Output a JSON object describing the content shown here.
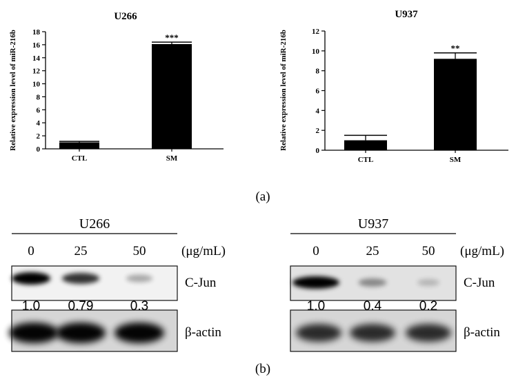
{
  "chart_data": [
    {
      "type": "bar",
      "title": "U266",
      "ylabel": "Relative expression level of miR-216b",
      "xlabel": "",
      "categories": [
        "CTL",
        "SM"
      ],
      "values": [
        1.0,
        16.1
      ],
      "errors": [
        0.15,
        0.3
      ],
      "significance": [
        "",
        "***"
      ],
      "ylim": [
        0,
        18
      ],
      "yticks": [
        0,
        2,
        4,
        6,
        8,
        10,
        12,
        14,
        16,
        18
      ],
      "bar_color": "#000000"
    },
    {
      "type": "bar",
      "title": "U937",
      "ylabel": "Relative expression level of miR-216b",
      "xlabel": "",
      "categories": [
        "CTL",
        "SM"
      ],
      "values": [
        1.0,
        9.2
      ],
      "errors": [
        0.5,
        0.6
      ],
      "significance": [
        "",
        "**"
      ],
      "ylim": [
        0,
        12
      ],
      "yticks": [
        0,
        2,
        4,
        6,
        8,
        10,
        12
      ],
      "bar_color": "#000000"
    }
  ],
  "panel_a": "(a)",
  "panel_b": "(b)",
  "western_blots": [
    {
      "cell_line": "U266",
      "doses": [
        "0",
        "25",
        "50"
      ],
      "unit": "(μg/mL)",
      "proteins": [
        "C-Jun",
        "β-actin"
      ],
      "quantification": [
        "1.0",
        "0.79",
        "0.3"
      ],
      "cjun_levels": [
        1.0,
        0.79,
        0.3
      ]
    },
    {
      "cell_line": "U937",
      "doses": [
        "0",
        "25",
        "50"
      ],
      "unit": "(μg/mL)",
      "proteins": [
        "C-Jun",
        "β-actin"
      ],
      "quantification": [
        "1.0",
        "0.4",
        "0.2"
      ],
      "cjun_levels": [
        1.0,
        0.4,
        0.2
      ]
    }
  ]
}
